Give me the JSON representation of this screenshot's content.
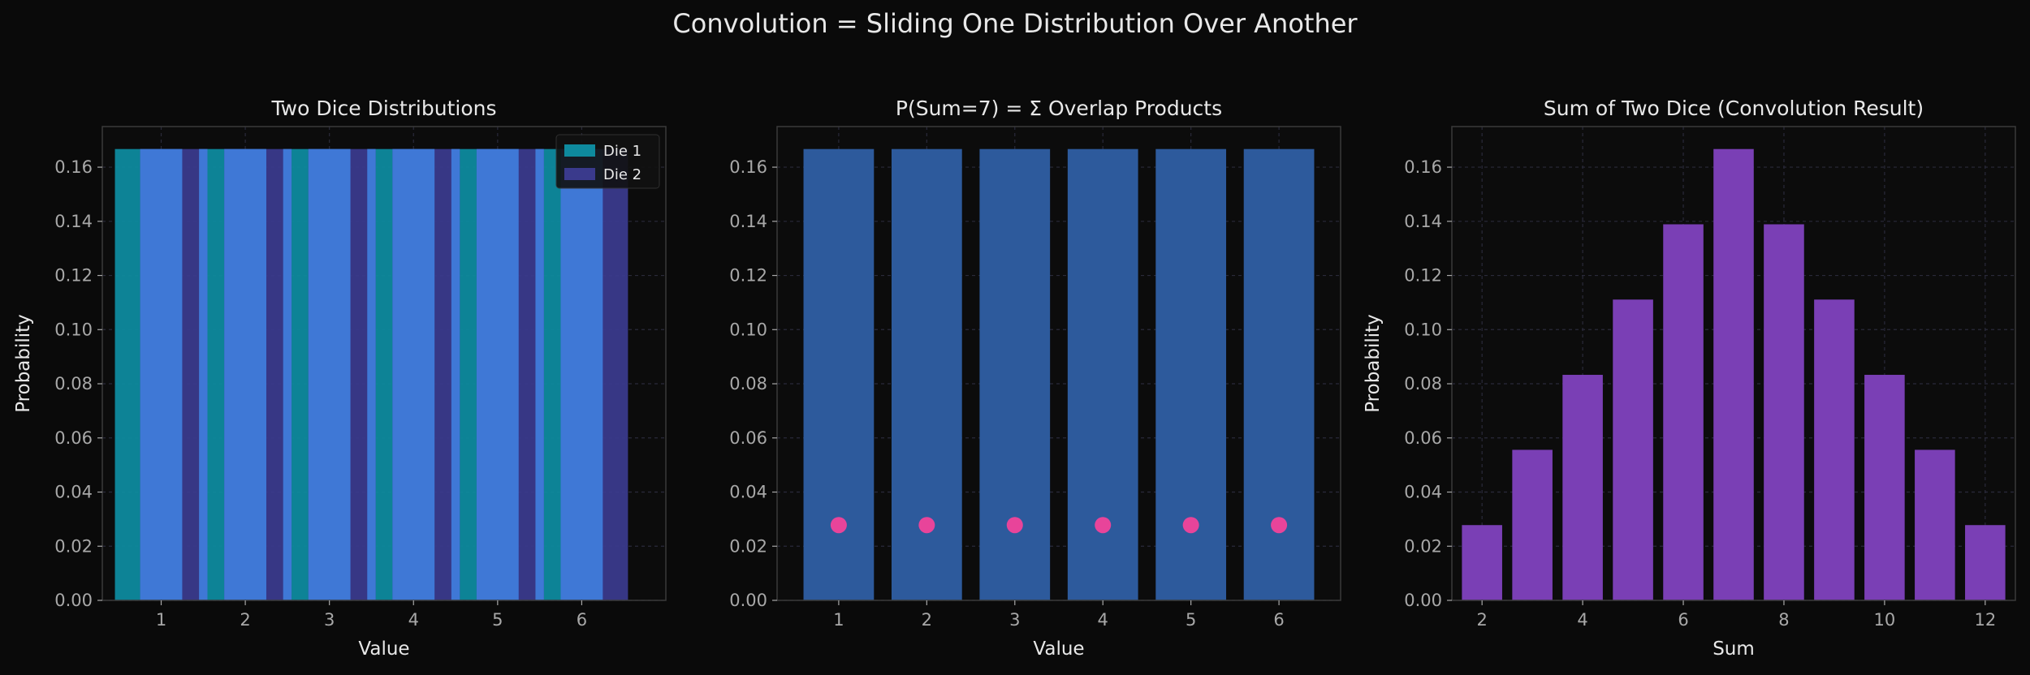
{
  "suptitle": "Convolution = Sliding One Distribution Over Another",
  "colors": {
    "background": "#0a0a0a",
    "axes_face": "#0c0c0c",
    "spine": "#3a3a3a",
    "text": "#e8e8e8",
    "tick_text": "#a8a8a8",
    "grid": "#2a2a3a",
    "die1": "#0e8a9e",
    "die2": "#3a3a8c",
    "overlap": "#3f78d6",
    "product_bars": "#2d5a9c",
    "product_points": "#e8449a",
    "sum_bars": "#7a3fb5"
  },
  "chart_data": [
    {
      "type": "bar",
      "title": "Two Dice Distributions",
      "xlabel": "Value",
      "ylabel": "Probability",
      "xlim": [
        0.3,
        7.0
      ],
      "ylim": [
        0,
        0.175
      ],
      "xticks": [
        1,
        2,
        3,
        4,
        5,
        6
      ],
      "yticks": [
        0.0,
        0.02,
        0.04,
        0.06,
        0.08,
        0.1,
        0.12,
        0.14,
        0.16
      ],
      "grid": true,
      "legend": "top-right",
      "series": [
        {
          "name": "Die 1",
          "x": [
            1,
            2,
            3,
            4,
            5,
            6
          ],
          "values": [
            0.1667,
            0.1667,
            0.1667,
            0.1667,
            0.1667,
            0.1667
          ],
          "width": 0.8,
          "offset": -0.15,
          "color": "#0e8a9e"
        },
        {
          "name": "Die 2",
          "x": [
            1,
            2,
            3,
            4,
            5,
            6
          ],
          "values": [
            0.1667,
            0.1667,
            0.1667,
            0.1667,
            0.1667,
            0.1667
          ],
          "width": 0.8,
          "offset": 0.15,
          "color": "#3a3a8c"
        }
      ]
    },
    {
      "type": "bar",
      "title": "P(Sum=7) = Σ Overlap Products",
      "xlabel": "Value",
      "ylabel": "",
      "xlim": [
        0.3,
        6.7
      ],
      "ylim": [
        0,
        0.175
      ],
      "xticks": [
        1,
        2,
        3,
        4,
        5,
        6
      ],
      "yticks": [
        0.0,
        0.02,
        0.04,
        0.06,
        0.08,
        0.1,
        0.12,
        0.14,
        0.16
      ],
      "grid": true,
      "x": [
        1,
        2,
        3,
        4,
        5,
        6
      ],
      "values": [
        0.1667,
        0.1667,
        0.1667,
        0.1667,
        0.1667,
        0.1667
      ],
      "width": 0.8,
      "products": [
        0.0278,
        0.0278,
        0.0278,
        0.0278,
        0.0278,
        0.0278
      ]
    },
    {
      "type": "bar",
      "title": "Sum of Two Dice (Convolution Result)",
      "xlabel": "Sum",
      "ylabel": "Probability",
      "xlim": [
        1.4,
        12.6
      ],
      "ylim": [
        0,
        0.175
      ],
      "xticks": [
        2,
        4,
        6,
        8,
        10,
        12
      ],
      "yticks": [
        0.0,
        0.02,
        0.04,
        0.06,
        0.08,
        0.1,
        0.12,
        0.14,
        0.16
      ],
      "grid": true,
      "categories": [
        2,
        3,
        4,
        5,
        6,
        7,
        8,
        9,
        10,
        11,
        12
      ],
      "values": [
        0.0278,
        0.0556,
        0.0833,
        0.1111,
        0.1389,
        0.1667,
        0.1389,
        0.1111,
        0.0833,
        0.0556,
        0.0278
      ],
      "width": 0.8
    }
  ]
}
